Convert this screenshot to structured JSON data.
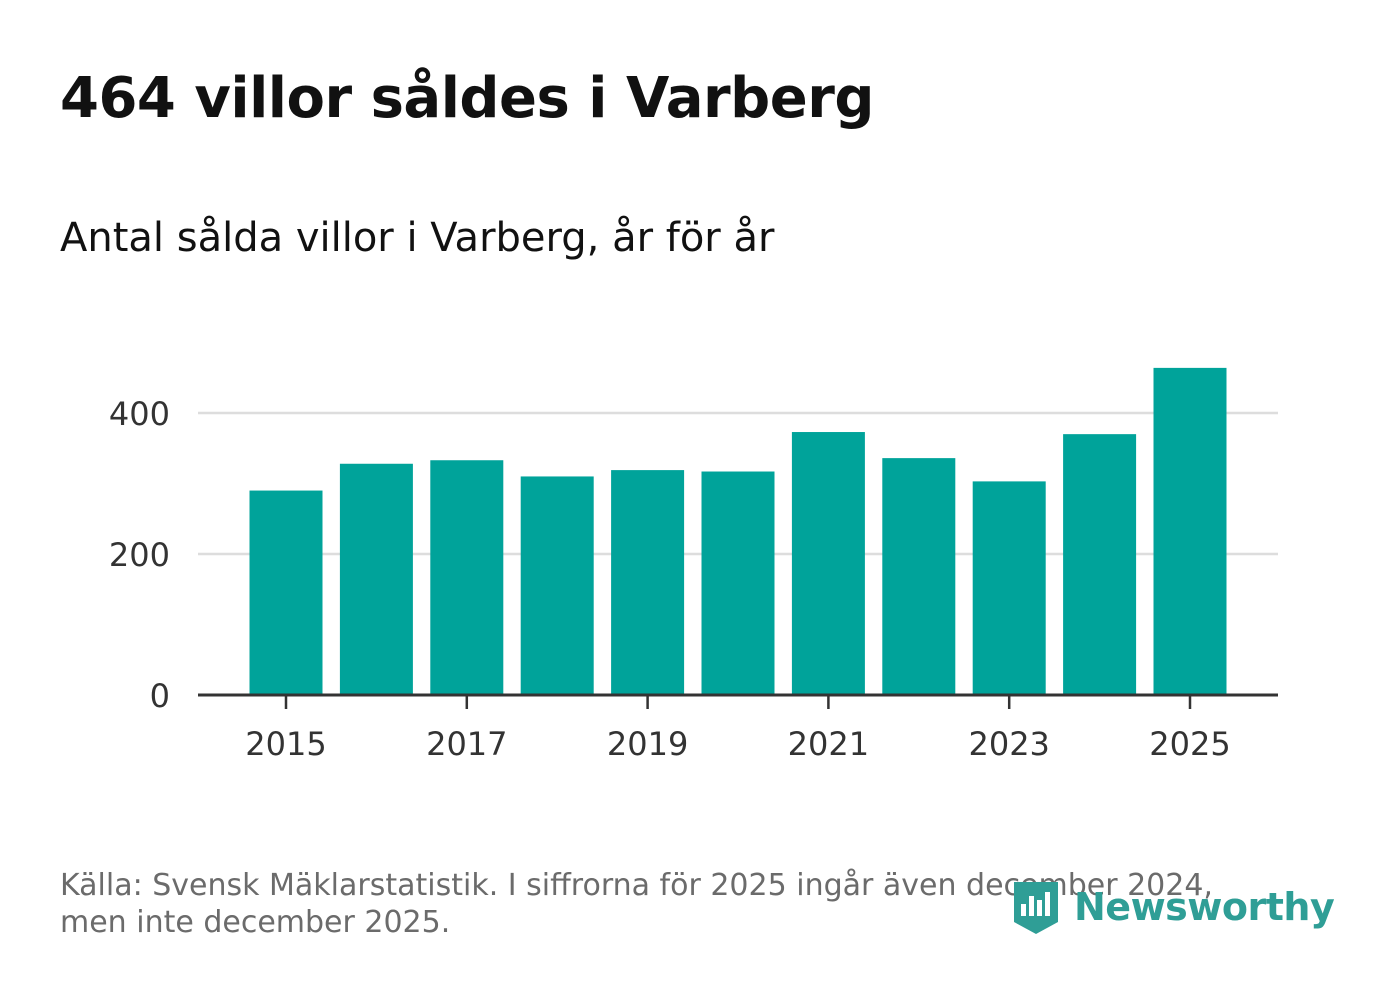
{
  "header": {
    "title": "464 villor såldes i Varberg",
    "subtitle": "Antal sålda villor i Varberg, år för år"
  },
  "chart_data": {
    "type": "bar",
    "title": "464 villor såldes i Varberg",
    "subtitle": "Antal sålda villor i Varberg, år för år",
    "categories": [
      "2015",
      "2016",
      "2017",
      "2018",
      "2019",
      "2020",
      "2021",
      "2022",
      "2023",
      "2024",
      "2025"
    ],
    "values": [
      290,
      328,
      333,
      310,
      319,
      317,
      373,
      336,
      303,
      370,
      464
    ],
    "x_tick_labels": [
      "2015",
      "2017",
      "2019",
      "2021",
      "2023",
      "2025"
    ],
    "y_ticks": [
      0,
      200,
      400
    ],
    "y_tick_labels": [
      "0",
      "200",
      "400"
    ],
    "ylim": [
      0,
      480
    ],
    "xlabel": "",
    "ylabel": "",
    "grid": true,
    "bar_color": "#00a39a"
  },
  "footer": {
    "source_line1": "Källa: Svensk Mäklarstatistik. I siffrorna för 2025 ingår även december 2024,",
    "source_line2": "men inte december 2025.",
    "brand": "Newsworthy",
    "brand_icon": "newsworthy-logo-icon",
    "brand_color": "#2f9e96"
  }
}
